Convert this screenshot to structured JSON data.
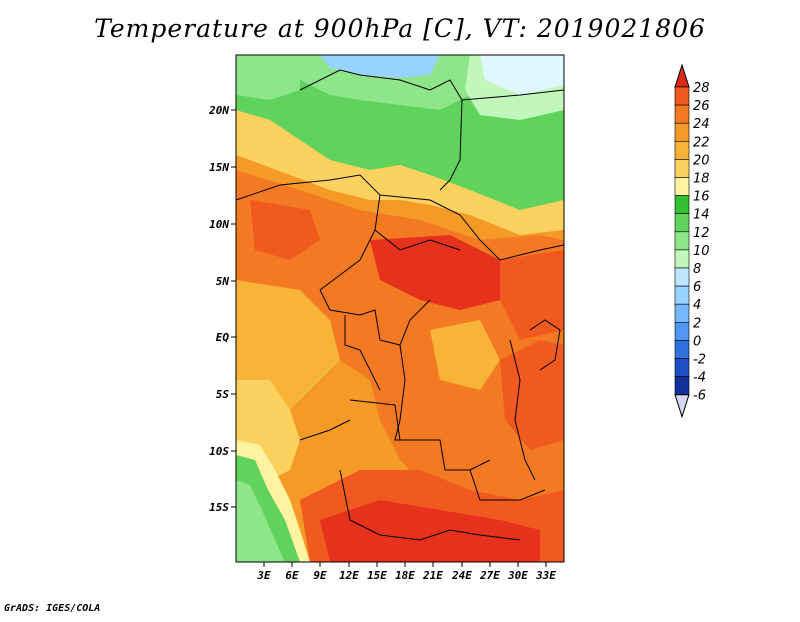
{
  "title": "Temperature at 900hPa [C], VT: 2019021806",
  "credit": "GrADS: IGES/COLA",
  "map": {
    "lat_labels": [
      "20N",
      "15N",
      "10N",
      "5N",
      "EQ",
      "5S",
      "10S",
      "15S"
    ],
    "lon_labels": [
      "3E",
      "6E",
      "9E",
      "12E",
      "15E",
      "18E",
      "21E",
      "24E",
      "27E",
      "30E",
      "33E"
    ]
  },
  "colorbar": {
    "labels": [
      "28",
      "26",
      "24",
      "22",
      "20",
      "18",
      "16",
      "14",
      "12",
      "10",
      "8",
      "6",
      "4",
      "2",
      "0",
      "-2",
      "-4",
      "-6"
    ],
    "colors": [
      "#e6321c",
      "#f05a1e",
      "#f37a22",
      "#f59a27",
      "#f7b436",
      "#fbd160",
      "#fdf3a0",
      "#33c033",
      "#5fd35c",
      "#8fe68a",
      "#c2f7bc",
      "#bfe6ff",
      "#99d3ff",
      "#76b8ff",
      "#4f97f2",
      "#2e72dd",
      "#1d4fc4",
      "#12309a",
      "#0a1570"
    ],
    "top_color": "#d92a18",
    "bottom_color": "#d8d8f0"
  }
}
